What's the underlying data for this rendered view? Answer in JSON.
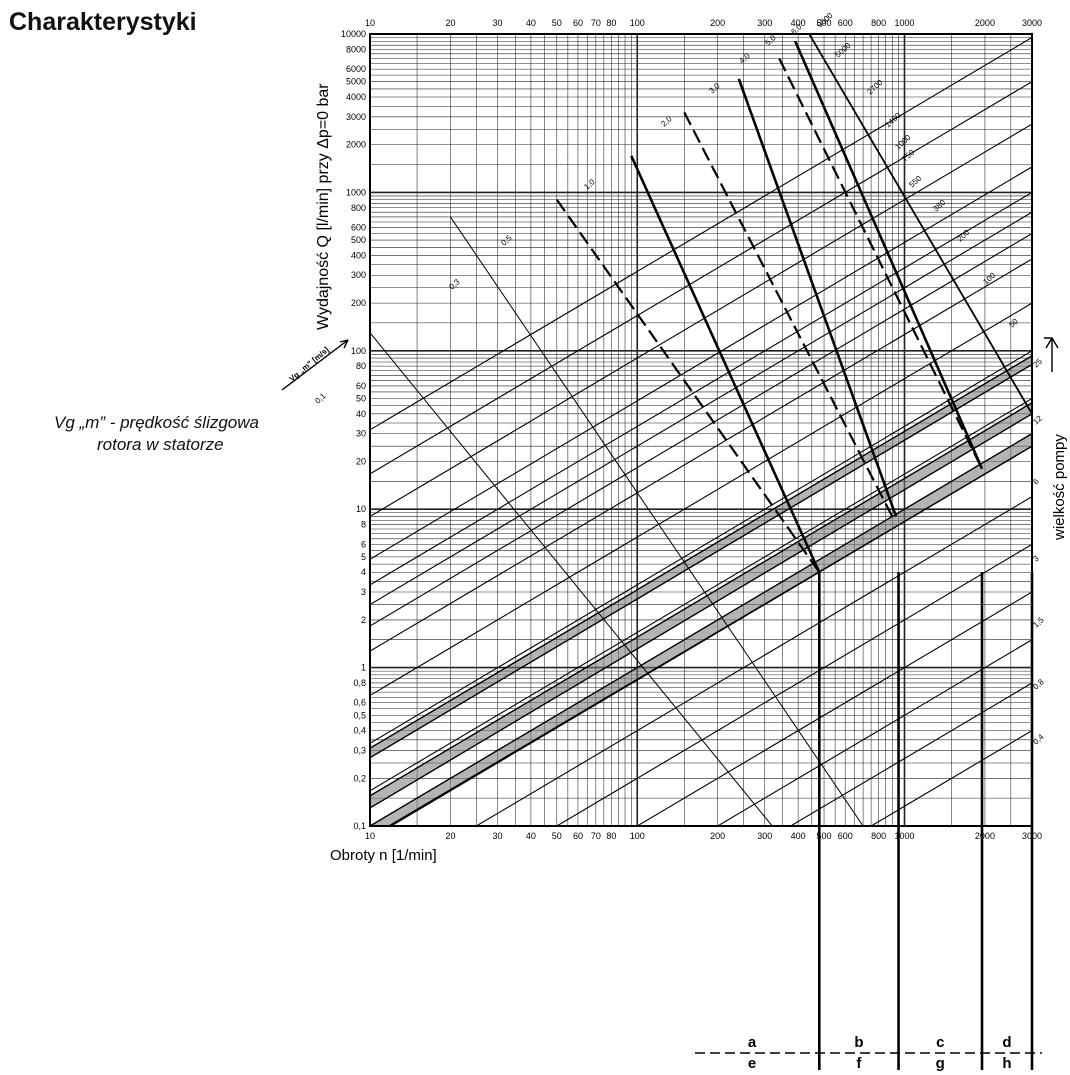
{
  "page": {
    "heading": "Charakterystyki",
    "note_line1": "Vg „m” -  prędkość ślizgowa",
    "note_line2": "rotora w statorze"
  },
  "chart_data": {
    "type": "line",
    "title": "",
    "xlabel": "Obroty n [1/min]",
    "ylabel": "Wydajność Q [l/min] przy Δp=0 bar",
    "right_label": "wielkość pompy",
    "speed_marker": "Vg „m” [m/s]",
    "x_scale": "log",
    "y_scale": "log",
    "xlim": [
      10,
      3000
    ],
    "ylim": [
      0.1,
      10000
    ],
    "grid": true,
    "x_ticks_top": [
      "10",
      "20",
      "30",
      "40",
      "50",
      "60",
      "70",
      "80",
      "100",
      "200",
      "300",
      "400",
      "500",
      "600",
      "800",
      "1000",
      "2000",
      "3000"
    ],
    "x_ticks_bottom": [
      "10",
      "20",
      "30",
      "40",
      "50",
      "60",
      "70",
      "80",
      "100",
      "200",
      "300",
      "400",
      "500",
      "600",
      "800",
      "1000",
      "2000",
      "3000"
    ],
    "y_ticks": [
      "0,1",
      "0,2",
      "0,3",
      "0,4",
      "0,5",
      "0,6",
      "0,8",
      "1",
      "2",
      "3",
      "4",
      "5",
      "6",
      "8",
      "10",
      "20",
      "30",
      "40",
      "50",
      "60",
      "80",
      "100",
      "200",
      "300",
      "400",
      "500",
      "600",
      "800",
      "1000",
      "2000",
      "3000",
      "4000",
      "5000",
      "6000",
      "8000",
      "10000"
    ],
    "pump_sizes": [
      "0,4",
      "0,8",
      "1,5",
      "3",
      "6",
      "12",
      "25",
      "50",
      "100",
      "200",
      "380",
      "550",
      "750",
      "1000",
      "1450",
      "2700",
      "5000",
      "9500"
    ],
    "sliding_speeds": [
      "0,1",
      "0,3",
      "0,5",
      "1,0",
      "2,0",
      "3,0",
      "4,0",
      "5,0",
      "6,0"
    ],
    "series": [
      {
        "name": "0,4",
        "x": [
          10,
          3000
        ],
        "y": [
          0.00133,
          0.4
        ]
      },
      {
        "name": "0,8",
        "x": [
          10,
          3000
        ],
        "y": [
          0.00267,
          0.8
        ]
      },
      {
        "name": "1,5",
        "x": [
          10,
          3000
        ],
        "y": [
          0.005,
          1.5
        ]
      },
      {
        "name": "3",
        "x": [
          10,
          3000
        ],
        "y": [
          0.01,
          3
        ]
      },
      {
        "name": "6",
        "x": [
          10,
          3000
        ],
        "y": [
          0.02,
          6
        ]
      },
      {
        "name": "12",
        "x": [
          10,
          3000
        ],
        "y": [
          0.04,
          12
        ]
      },
      {
        "name": "25",
        "x": [
          10,
          3000
        ],
        "y": [
          0.0833,
          25
        ]
      },
      {
        "name": "50",
        "x": [
          10,
          3000
        ],
        "y": [
          0.167,
          50
        ]
      },
      {
        "name": "100",
        "x": [
          10,
          3000
        ],
        "y": [
          0.333,
          100
        ]
      },
      {
        "name": "200",
        "x": [
          10,
          3000
        ],
        "y": [
          0.667,
          200
        ]
      },
      {
        "name": "380",
        "x": [
          10,
          3000
        ],
        "y": [
          1.27,
          380
        ]
      },
      {
        "name": "550",
        "x": [
          10,
          3000
        ],
        "y": [
          1.83,
          550
        ]
      },
      {
        "name": "750",
        "x": [
          10,
          3000
        ],
        "y": [
          2.5,
          750
        ]
      },
      {
        "name": "1000",
        "x": [
          10,
          3000
        ],
        "y": [
          3.33,
          1000
        ]
      },
      {
        "name": "1450",
        "x": [
          10,
          3000
        ],
        "y": [
          4.83,
          1450
        ]
      },
      {
        "name": "2700",
        "x": [
          10,
          3000
        ],
        "y": [
          9,
          2700
        ]
      },
      {
        "name": "5000",
        "x": [
          10,
          3000
        ],
        "y": [
          16.7,
          5000
        ]
      },
      {
        "name": "9500",
        "x": [
          10,
          3000
        ],
        "y": [
          31.7,
          9500
        ]
      }
    ],
    "bands": [
      {
        "x": [
          10,
          3000
        ],
        "y_low": [
          0.27,
          82
        ],
        "y_high": [
          0.31,
          93
        ]
      },
      {
        "x": [
          10,
          3000
        ],
        "y_low": [
          0.13,
          40
        ],
        "y_high": [
          0.155,
          47
        ]
      },
      {
        "x": [
          10,
          3000
        ],
        "y_low": [
          0.085,
          25
        ],
        "y_high": [
          0.1,
          30
        ]
      }
    ],
    "operating_ranges": {
      "top": [
        "a",
        "b",
        "c",
        "d"
      ],
      "bottom": [
        "e",
        "f",
        "g",
        "h"
      ],
      "boundaries_rpm": [
        480,
        950,
        1950,
        3000
      ]
    }
  }
}
